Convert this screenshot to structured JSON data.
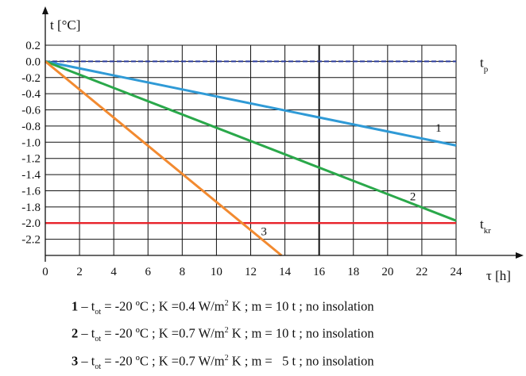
{
  "chart_data": {
    "type": "line",
    "ylabel": "t [°C]",
    "xlabel": "τ [h]",
    "xlim": [
      0,
      24
    ],
    "ylim": [
      -2.4,
      0.2
    ],
    "x_ticks": [
      "0",
      "2",
      "4",
      "6",
      "8",
      "10",
      "12",
      "14",
      "16",
      "18",
      "20",
      "22",
      "24"
    ],
    "y_ticks": [
      "0.2",
      "0.0",
      "-0.2",
      "-0.4",
      "-0.6",
      "-0.8",
      "-1.0",
      "-1.2",
      "-1.4",
      "-1.6",
      "-1.8",
      "-2.0",
      "-2.2"
    ],
    "grid": true,
    "series": [
      {
        "name": "1",
        "color": "#2f9ad6",
        "x": [
          0,
          24
        ],
        "y": [
          0.0,
          -1.04
        ]
      },
      {
        "name": "2",
        "color": "#2aa84a",
        "x": [
          0,
          24
        ],
        "y": [
          0.0,
          -1.97
        ]
      },
      {
        "name": "3",
        "color": "#f28a30",
        "x": [
          0,
          13.8
        ],
        "y": [
          0.0,
          -2.4
        ]
      }
    ],
    "reference_lines": [
      {
        "label_main": "t",
        "label_sub": "p",
        "y": 0.0,
        "color": "#2a3a9a",
        "style": "dashed"
      },
      {
        "label_main": "t",
        "label_sub": "kr",
        "y": -2.0,
        "color": "#e8232a",
        "style": "solid"
      }
    ],
    "legend": [
      {
        "num": "1",
        "t_sym": "t",
        "t_sub": "ot",
        "t_val": "= -20 ºC",
        "k_text": "K =0.4 W/m",
        "k_sup": "2",
        "k_tail": "K",
        "m_text": "m = 10 t",
        "tail": "no insolation"
      },
      {
        "num": "2",
        "t_sym": "t",
        "t_sub": "ot",
        "t_val": "= -20 ºC",
        "k_text": "K =0.7 W/m",
        "k_sup": "2",
        "k_tail": "K",
        "m_text": "m = 10 t",
        "tail": "no insolation"
      },
      {
        "num": "3",
        "t_sym": "t",
        "t_sub": "ot",
        "t_val": "= -20 ºC",
        "k_text": "K =0.7 W/m",
        "k_sup": "2",
        "k_tail": "K",
        "m_text": "m =   5 t",
        "tail": "no insolation"
      }
    ]
  }
}
